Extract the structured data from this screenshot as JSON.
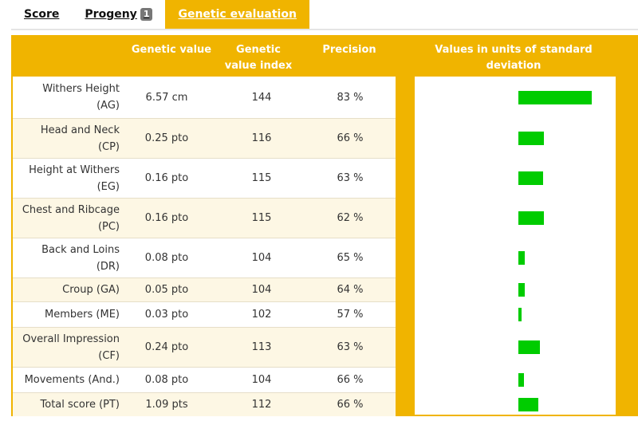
{
  "tabs": [
    {
      "label": "Score",
      "active": false,
      "badge": null
    },
    {
      "label": "Progeny",
      "active": false,
      "badge": "1"
    },
    {
      "label": "Genetic evaluation",
      "active": true,
      "badge": null
    }
  ],
  "table": {
    "headers": {
      "name": "",
      "genetic_value": "Genetic value",
      "genetic_value_index": "Genetic value index",
      "precision": "Precision",
      "sd_values": "Values in units of standard deviation"
    },
    "rows": [
      {
        "name_line1": "Withers Height",
        "name_line2": "(AG)",
        "value": "6.57 cm",
        "index": "144",
        "precision": "83 %",
        "sd_fraction": 0.92
      },
      {
        "name_line1": "Head and Neck",
        "name_line2": "(CP)",
        "value": "0.25 pto",
        "index": "116",
        "precision": "66 %",
        "sd_fraction": 0.32
      },
      {
        "name_line1": "Height at Withers",
        "name_line2": "(EG)",
        "value": "0.16 pto",
        "index": "115",
        "precision": "63 %",
        "sd_fraction": 0.31
      },
      {
        "name_line1": "Chest and Ribcage",
        "name_line2": "(PC)",
        "value": "0.16 pto",
        "index": "115",
        "precision": "62 %",
        "sd_fraction": 0.32
      },
      {
        "name_line1": "Back and Loins",
        "name_line2": "(DR)",
        "value": "0.08 pto",
        "index": "104",
        "precision": "65 %",
        "sd_fraction": 0.08
      },
      {
        "name_line1": "Croup (GA)",
        "name_line2": "",
        "value": "0.05 pto",
        "index": "104",
        "precision": "64 %",
        "sd_fraction": 0.08
      },
      {
        "name_line1": "Members (ME)",
        "name_line2": "",
        "value": "0.03 pto",
        "index": "102",
        "precision": "57 %",
        "sd_fraction": 0.04
      },
      {
        "name_line1": "Overall Impression",
        "name_line2": "(CF)",
        "value": "0.24 pto",
        "index": "113",
        "precision": "63 %",
        "sd_fraction": 0.27
      },
      {
        "name_line1": "Movements (And.)",
        "name_line2": "",
        "value": "0.08 pto",
        "index": "104",
        "precision": "66 %",
        "sd_fraction": 0.07
      },
      {
        "name_line1": "Total score (PT)",
        "name_line2": "",
        "value": "1.09 pts",
        "index": "112",
        "precision": "66 %",
        "sd_fraction": 0.25
      }
    ]
  },
  "colors": {
    "accent": "#f0b400",
    "bar": "#00cc00",
    "alt_row": "#fdf7e4"
  }
}
